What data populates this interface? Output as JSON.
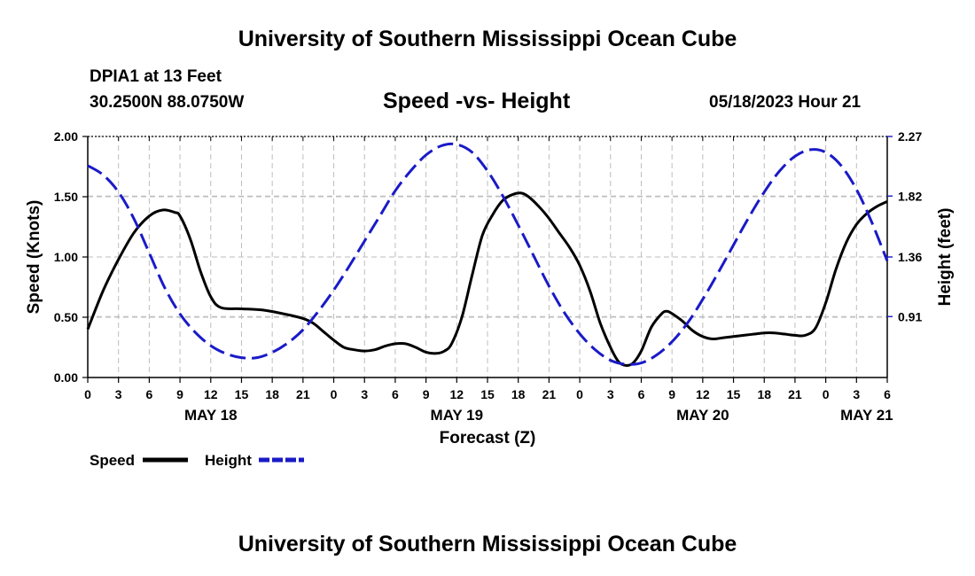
{
  "page": {
    "title": "University of Southern Mississippi Ocean Cube",
    "bottom_title": "University of Southern Mississippi Ocean Cube",
    "station_name": "DPIA1 at 13 Feet",
    "station_coords": "30.2500N  88.0750W",
    "timestamp": "05/18/2023 Hour 21"
  },
  "chart_data": {
    "type": "line",
    "title": "Speed -vs- Height",
    "xlabel": "Forecast (Z)",
    "ylabel_left": "Speed (Knots)",
    "ylabel_right": "Height (feet)",
    "x_unit": "hours from May 18 00Z",
    "xlim": [
      0,
      78
    ],
    "ylim_left": [
      0,
      2
    ],
    "ylim_right": [
      0.45,
      2.27
    ],
    "x_ticks": [
      0,
      3,
      6,
      9,
      12,
      15,
      18,
      21,
      24,
      27,
      30,
      33,
      36,
      39,
      42,
      45,
      48,
      51,
      54,
      57,
      60,
      63,
      66,
      69,
      72,
      75,
      78
    ],
    "x_tick_labels": [
      "0",
      "3",
      "6",
      "9",
      "12",
      "15",
      "18",
      "21",
      "0",
      "3",
      "6",
      "9",
      "12",
      "15",
      "18",
      "21",
      "0",
      "3",
      "6",
      "9",
      "12",
      "15",
      "18",
      "21",
      "0",
      "3",
      "6"
    ],
    "y_left_ticks": [
      0,
      0.5,
      1.0,
      1.5,
      2.0
    ],
    "y_left_tick_labels": [
      "0.00",
      "0.50",
      "1.00",
      "1.50",
      "2.00"
    ],
    "y_right_ticks": [
      0.91,
      1.36,
      1.82,
      2.27
    ],
    "y_right_tick_labels": [
      "0.91",
      "1.36",
      "1.82",
      "2.27"
    ],
    "date_labels": [
      {
        "x": 12,
        "label": "MAY 18"
      },
      {
        "x": 36,
        "label": "MAY 19"
      },
      {
        "x": 60,
        "label": "MAY 20"
      },
      {
        "x": 76,
        "label": "MAY 21"
      }
    ],
    "grid": true,
    "legend_position": "bottom-left",
    "series": [
      {
        "name": "Speed",
        "axis": "left",
        "color": "#000000",
        "dash": "solid",
        "points": [
          [
            0,
            0.4
          ],
          [
            1.5,
            0.72
          ],
          [
            3,
            0.98
          ],
          [
            4.5,
            1.2
          ],
          [
            6,
            1.34
          ],
          [
            7.3,
            1.39
          ],
          [
            8.5,
            1.37
          ],
          [
            9,
            1.34
          ],
          [
            10,
            1.15
          ],
          [
            11,
            0.88
          ],
          [
            12,
            0.67
          ],
          [
            13,
            0.58
          ],
          [
            15,
            0.57
          ],
          [
            17,
            0.56
          ],
          [
            19,
            0.53
          ],
          [
            21,
            0.49
          ],
          [
            22,
            0.45
          ],
          [
            23,
            0.38
          ],
          [
            24,
            0.31
          ],
          [
            25,
            0.25
          ],
          [
            26,
            0.23
          ],
          [
            27,
            0.22
          ],
          [
            28,
            0.23
          ],
          [
            29,
            0.26
          ],
          [
            30,
            0.28
          ],
          [
            31,
            0.28
          ],
          [
            32,
            0.25
          ],
          [
            33,
            0.21
          ],
          [
            34,
            0.2
          ],
          [
            34.8,
            0.22
          ],
          [
            35.5,
            0.28
          ],
          [
            36.5,
            0.5
          ],
          [
            37.5,
            0.85
          ],
          [
            38.5,
            1.18
          ],
          [
            39.5,
            1.35
          ],
          [
            40.5,
            1.47
          ],
          [
            41.5,
            1.52
          ],
          [
            42.3,
            1.53
          ],
          [
            43,
            1.5
          ],
          [
            44,
            1.42
          ],
          [
            45,
            1.32
          ],
          [
            46,
            1.2
          ],
          [
            47,
            1.08
          ],
          [
            48,
            0.93
          ],
          [
            49,
            0.72
          ],
          [
            50,
            0.45
          ],
          [
            51,
            0.25
          ],
          [
            51.8,
            0.13
          ],
          [
            52.5,
            0.1
          ],
          [
            53.2,
            0.12
          ],
          [
            54,
            0.22
          ],
          [
            55,
            0.42
          ],
          [
            56,
            0.53
          ],
          [
            56.5,
            0.55
          ],
          [
            57,
            0.53
          ],
          [
            58,
            0.47
          ],
          [
            59,
            0.39
          ],
          [
            60,
            0.34
          ],
          [
            61,
            0.32
          ],
          [
            62,
            0.33
          ],
          [
            64,
            0.35
          ],
          [
            65,
            0.36
          ],
          [
            66,
            0.37
          ],
          [
            67,
            0.37
          ],
          [
            68,
            0.36
          ],
          [
            69,
            0.35
          ],
          [
            70,
            0.35
          ],
          [
            71,
            0.41
          ],
          [
            72,
            0.62
          ],
          [
            73,
            0.9
          ],
          [
            74,
            1.12
          ],
          [
            75,
            1.27
          ],
          [
            76,
            1.36
          ],
          [
            77,
            1.42
          ],
          [
            78,
            1.46
          ]
        ]
      },
      {
        "name": "Height",
        "axis": "right",
        "color": "#1a1ac8",
        "dash": "dashed",
        "points": [
          [
            0,
            2.05
          ],
          [
            1.5,
            1.98
          ],
          [
            3,
            1.85
          ],
          [
            4.5,
            1.65
          ],
          [
            6,
            1.39
          ],
          [
            7.5,
            1.13
          ],
          [
            9,
            0.93
          ],
          [
            10.5,
            0.79
          ],
          [
            12,
            0.69
          ],
          [
            13.5,
            0.63
          ],
          [
            15,
            0.6
          ],
          [
            16.5,
            0.6
          ],
          [
            18,
            0.64
          ],
          [
            19.5,
            0.71
          ],
          [
            21,
            0.81
          ],
          [
            22.5,
            0.95
          ],
          [
            24,
            1.11
          ],
          [
            25.5,
            1.29
          ],
          [
            27,
            1.48
          ],
          [
            28.5,
            1.67
          ],
          [
            30,
            1.86
          ],
          [
            31.5,
            2.01
          ],
          [
            33,
            2.13
          ],
          [
            34.5,
            2.2
          ],
          [
            36,
            2.21
          ],
          [
            37.5,
            2.15
          ],
          [
            39,
            2.01
          ],
          [
            40.5,
            1.82
          ],
          [
            42,
            1.6
          ],
          [
            43.5,
            1.37
          ],
          [
            45,
            1.14
          ],
          [
            46.5,
            0.94
          ],
          [
            48,
            0.78
          ],
          [
            49.5,
            0.66
          ],
          [
            51,
            0.58
          ],
          [
            52.5,
            0.55
          ],
          [
            54,
            0.56
          ],
          [
            55.5,
            0.62
          ],
          [
            57,
            0.72
          ],
          [
            58.5,
            0.86
          ],
          [
            60,
            1.04
          ],
          [
            61.5,
            1.24
          ],
          [
            63,
            1.45
          ],
          [
            64.5,
            1.66
          ],
          [
            66,
            1.85
          ],
          [
            67.5,
            2.01
          ],
          [
            69,
            2.12
          ],
          [
            70.5,
            2.17
          ],
          [
            72,
            2.15
          ],
          [
            73.5,
            2.05
          ],
          [
            75,
            1.87
          ],
          [
            76.5,
            1.62
          ],
          [
            78,
            1.33
          ]
        ]
      }
    ]
  }
}
